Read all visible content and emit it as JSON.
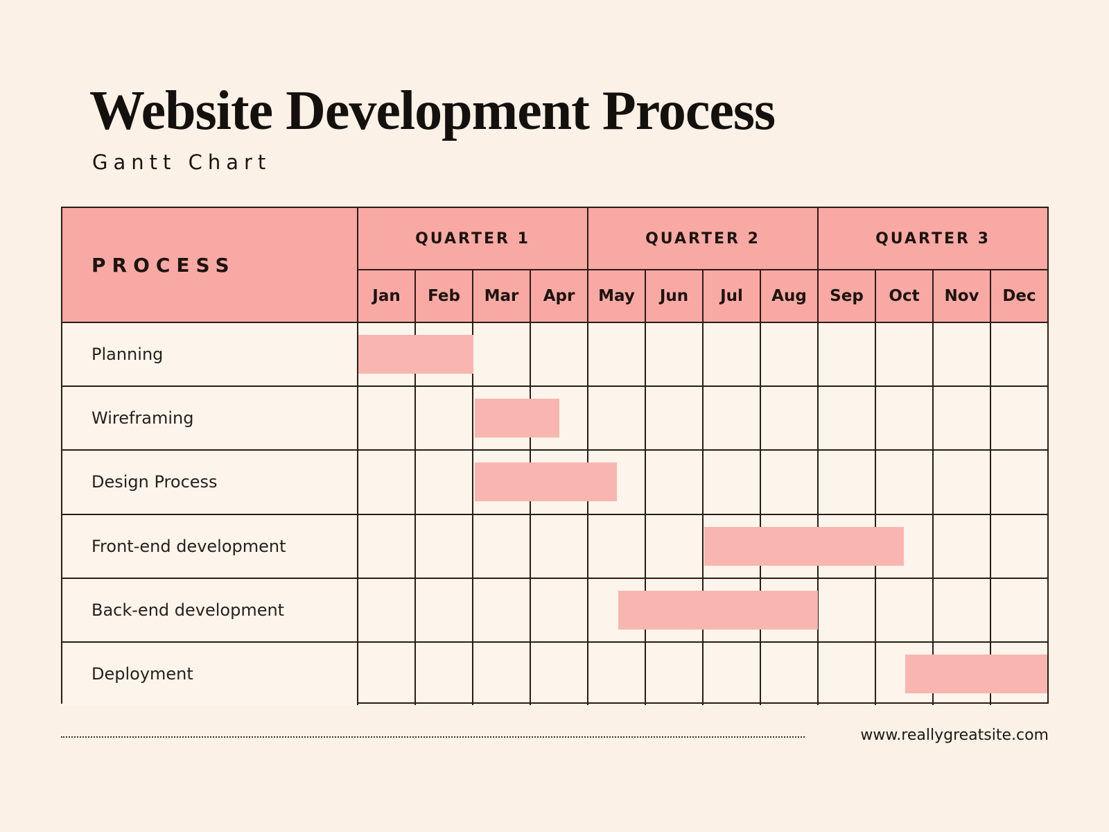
{
  "page": {
    "title": "Website Development Process",
    "subtitle": "Gantt Chart",
    "footer": {
      "url": "www.reallygreatsite.com"
    }
  },
  "table": {
    "process_header": "PROCESS"
  },
  "colors": {
    "page_background": "#FBF1E7",
    "cell_background": "#FDF5EC",
    "header_pink": "#F9A9A4",
    "bar_pink": "#F9B5B0",
    "grid_line": "#2A1C15",
    "text_dark": "#171310"
  },
  "chart_data": {
    "type": "gantt",
    "title": "Website Development Process",
    "subtitle": "Gantt Chart",
    "time_axis": {
      "unit": "months",
      "range": [
        0,
        12
      ],
      "labels": [
        "Jan",
        "Feb",
        "Mar",
        "Apr",
        "May",
        "Jun",
        "Jul",
        "Aug",
        "Sep",
        "Oct",
        "Nov",
        "Dec"
      ],
      "quarters": [
        {
          "label": "QUARTER 1",
          "months": [
            "Jan",
            "Feb",
            "Mar",
            "Apr"
          ]
        },
        {
          "label": "QUARTER 2",
          "months": [
            "May",
            "Jun",
            "Jul",
            "Aug"
          ]
        },
        {
          "label": "QUARTER 3",
          "months": [
            "Sep",
            "Oct",
            "Nov",
            "Dec"
          ]
        }
      ]
    },
    "tasks": [
      {
        "name": "Planning",
        "start": 0,
        "end": 2
      },
      {
        "name": "Wireframing",
        "start": 2,
        "end": 3.5
      },
      {
        "name": "Design Process",
        "start": 2,
        "end": 4.5
      },
      {
        "name": "Front-end development",
        "start": 6,
        "end": 9.5
      },
      {
        "name": "Back-end development",
        "start": 4.5,
        "end": 8
      },
      {
        "name": "Deployment",
        "start": 9.5,
        "end": 12
      }
    ]
  }
}
